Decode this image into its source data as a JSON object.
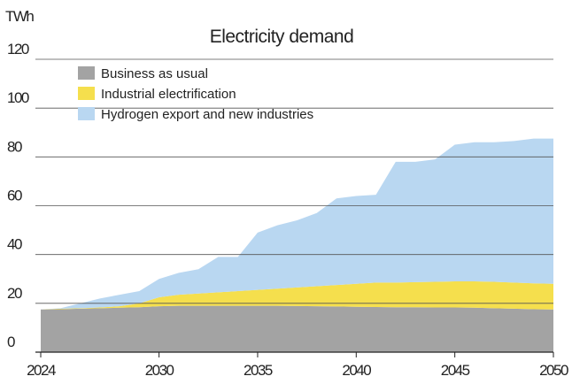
{
  "chart_data": {
    "type": "stacked_area",
    "title": "Electricity demand",
    "y_label": "TWh",
    "x": [
      2024,
      2025,
      2026,
      2027,
      2028,
      2029,
      2030,
      2031,
      2032,
      2033,
      2034,
      2035,
      2036,
      2037,
      2038,
      2039,
      2040,
      2041,
      2042,
      2043,
      2044,
      2045,
      2046,
      2047,
      2048,
      2049,
      2050
    ],
    "series": [
      {
        "name": "Business as usual",
        "color": "#a3a3a3",
        "values": [
          17.5,
          17.6,
          17.8,
          18,
          18.2,
          18.4,
          18.8,
          19,
          19,
          19,
          19,
          19,
          19,
          18.9,
          18.8,
          18.7,
          18.6,
          18.5,
          18.4,
          18.4,
          18.3,
          18.3,
          18.2,
          18,
          17.8,
          17.6,
          17.5
        ]
      },
      {
        "name": "Industrial electrification",
        "color": "#f5df4d",
        "values": [
          0,
          0.2,
          0.2,
          0.3,
          0.6,
          1.6,
          3.7,
          4.5,
          5,
          5.5,
          6,
          6.5,
          7,
          7.6,
          8.2,
          8.8,
          9.4,
          10,
          10.1,
          10.3,
          10.5,
          10.7,
          10.8,
          10.8,
          10.7,
          10.6,
          10.5
        ]
      },
      {
        "name": "Hydrogen export and new industries",
        "color": "#b9d7f1",
        "values": [
          0,
          0.2,
          2,
          3.7,
          4.7,
          5,
          7.5,
          9,
          10,
          14.5,
          14,
          23.5,
          26,
          27.5,
          30,
          35.5,
          36,
          36,
          49.5,
          49.3,
          50.2,
          56,
          57,
          57.2,
          58,
          59.3,
          59.5
        ]
      }
    ],
    "xlim": [
      2024,
      2050
    ],
    "xticks": [
      2024,
      2030,
      2035,
      2040,
      2045,
      2050
    ],
    "ylim": [
      0,
      120
    ],
    "yticks": [
      0,
      20,
      40,
      60,
      80,
      100,
      120
    ],
    "grid": true,
    "legend": "top-left"
  }
}
